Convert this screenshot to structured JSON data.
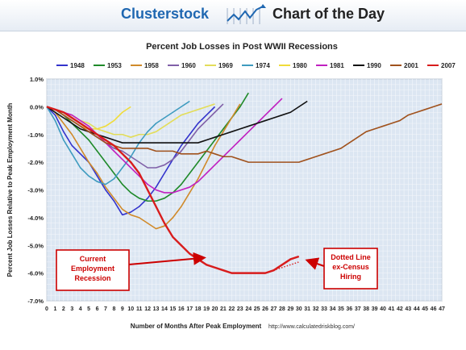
{
  "header": {
    "brand": "Clusterstock",
    "title": "Chart of the Day"
  },
  "colors": {
    "page_bg": "#ffffff",
    "plot_bg": "#dce6f2",
    "grid": "#f4f7fb",
    "annotation": "#cc0000"
  },
  "chart_data": {
    "type": "line",
    "title": "Percent Job Losses in Post WWII Recessions",
    "xlabel": "Number of Months After Peak Employment",
    "ylabel": "Percent Job Losses Relative to Peak Employment Month",
    "source": "http://www.calculatedriskblog.com/",
    "xlim": [
      0,
      47
    ],
    "ylim": [
      -7.0,
      1.0
    ],
    "yticks": [
      1.0,
      0.0,
      -1.0,
      -2.0,
      -3.0,
      -4.0,
      -5.0,
      -6.0,
      -7.0
    ],
    "ytick_labels": [
      "1.0%",
      "0.0%",
      "-1.0%",
      "-2.0%",
      "-3.0%",
      "-4.0%",
      "-5.0%",
      "-6.0%",
      "-7.0%"
    ],
    "xticks": [
      0,
      1,
      2,
      3,
      4,
      5,
      6,
      7,
      8,
      9,
      10,
      11,
      12,
      13,
      14,
      15,
      16,
      17,
      18,
      19,
      20,
      21,
      22,
      23,
      24,
      25,
      26,
      27,
      28,
      29,
      30,
      31,
      32,
      33,
      34,
      35,
      36,
      37,
      38,
      39,
      40,
      41,
      42,
      43,
      44,
      45,
      46,
      47
    ],
    "grid": true,
    "legend_position": "top",
    "series": [
      {
        "name": "1948",
        "color": "#3333cc",
        "values": [
          0,
          -0.3,
          -0.9,
          -1.4,
          -1.7,
          -2.0,
          -2.5,
          -3.0,
          -3.4,
          -3.9,
          -3.8,
          -3.6,
          -3.3,
          -2.9,
          -2.4,
          -1.9,
          -1.4,
          -1.0,
          -0.6,
          -0.3,
          0.0
        ]
      },
      {
        "name": "1953",
        "color": "#1f8a2a",
        "values": [
          0,
          -0.1,
          -0.3,
          -0.6,
          -0.9,
          -1.2,
          -1.6,
          -2.0,
          -2.4,
          -2.8,
          -3.1,
          -3.3,
          -3.4,
          -3.4,
          -3.3,
          -3.1,
          -2.8,
          -2.4,
          -2.0,
          -1.6,
          -1.2,
          -0.8,
          -0.4,
          0.0,
          0.5
        ]
      },
      {
        "name": "1958",
        "color": "#d08a2a",
        "values": [
          0,
          -0.2,
          -0.6,
          -1.0,
          -1.5,
          -2.0,
          -2.4,
          -2.9,
          -3.3,
          -3.7,
          -3.9,
          -4.0,
          -4.2,
          -4.4,
          -4.3,
          -4.0,
          -3.6,
          -3.1,
          -2.6,
          -2.0,
          -1.4,
          -0.9,
          -0.4,
          0.1
        ]
      },
      {
        "name": "1960",
        "color": "#8060a8",
        "values": [
          0,
          -0.1,
          -0.3,
          -0.5,
          -0.7,
          -0.9,
          -1.1,
          -1.3,
          -1.5,
          -1.6,
          -1.8,
          -2.0,
          -2.2,
          -2.2,
          -2.1,
          -1.9,
          -1.6,
          -1.2,
          -0.8,
          -0.5,
          -0.2,
          0.1
        ]
      },
      {
        "name": "1969",
        "color": "#e3dd5a",
        "values": [
          0,
          -0.1,
          -0.2,
          -0.3,
          -0.5,
          -0.6,
          -0.8,
          -0.9,
          -1.0,
          -1.0,
          -1.1,
          -1.0,
          -1.0,
          -0.9,
          -0.7,
          -0.5,
          -0.3,
          -0.2,
          -0.1,
          0.0,
          0.1
        ]
      },
      {
        "name": "1974",
        "color": "#3e9bbf",
        "values": [
          0,
          -0.5,
          -1.2,
          -1.7,
          -2.2,
          -2.5,
          -2.7,
          -2.8,
          -2.6,
          -2.2,
          -1.8,
          -1.3,
          -0.9,
          -0.6,
          -0.4,
          -0.2,
          0.0,
          0.2
        ]
      },
      {
        "name": "1980",
        "color": "#f0dc3a",
        "values": [
          0,
          -0.1,
          -0.3,
          -0.5,
          -0.7,
          -0.8,
          -0.8,
          -0.7,
          -0.5,
          -0.2,
          0.0
        ]
      },
      {
        "name": "1981",
        "color": "#c020c0",
        "values": [
          0,
          -0.1,
          -0.2,
          -0.3,
          -0.5,
          -0.7,
          -1.0,
          -1.3,
          -1.6,
          -1.9,
          -2.2,
          -2.5,
          -2.8,
          -3.0,
          -3.1,
          -3.1,
          -3.0,
          -2.9,
          -2.7,
          -2.4,
          -2.1,
          -1.8,
          -1.5,
          -1.2,
          -0.9,
          -0.6,
          -0.3,
          0.0,
          0.3
        ]
      },
      {
        "name": "1990",
        "color": "#111111",
        "values": [
          0,
          -0.2,
          -0.4,
          -0.6,
          -0.8,
          -0.9,
          -1.0,
          -1.1,
          -1.2,
          -1.3,
          -1.3,
          -1.3,
          -1.3,
          -1.3,
          -1.3,
          -1.3,
          -1.3,
          -1.3,
          -1.3,
          -1.2,
          -1.1,
          -1.0,
          -0.9,
          -0.8,
          -0.7,
          -0.6,
          -0.5,
          -0.4,
          -0.3,
          -0.2,
          0.0,
          0.2
        ]
      },
      {
        "name": "2001",
        "color": "#a0521d",
        "values": [
          0,
          -0.1,
          -0.3,
          -0.5,
          -0.7,
          -0.9,
          -1.1,
          -1.3,
          -1.4,
          -1.5,
          -1.5,
          -1.5,
          -1.5,
          -1.6,
          -1.6,
          -1.6,
          -1.7,
          -1.7,
          -1.7,
          -1.6,
          -1.7,
          -1.8,
          -1.8,
          -1.9,
          -2.0,
          -2.0,
          -2.0,
          -2.0,
          -2.0,
          -2.0,
          -2.0,
          -1.9,
          -1.8,
          -1.7,
          -1.6,
          -1.5,
          -1.3,
          -1.1,
          -0.9,
          -0.8,
          -0.7,
          -0.6,
          -0.5,
          -0.3,
          -0.2,
          -0.1,
          0.0,
          0.1
        ]
      },
      {
        "name": "2007",
        "color": "#d81c1c",
        "values": [
          0,
          -0.1,
          -0.2,
          -0.4,
          -0.6,
          -0.8,
          -1.0,
          -1.2,
          -1.4,
          -1.7,
          -2.0,
          -2.4,
          -3.0,
          -3.6,
          -4.2,
          -4.7,
          -5.0,
          -5.3,
          -5.5,
          -5.7,
          -5.8,
          -5.9,
          -6.0,
          -6.0,
          -6.0,
          -6.0,
          -6.0,
          -5.9,
          -5.7,
          -5.5,
          -5.4
        ],
        "dotted_values": [
          -6.0,
          -5.9,
          -5.8,
          -5.7,
          -5.6
        ]
      }
    ],
    "annotations": [
      {
        "label": "Current Employment Recession"
      },
      {
        "label": "Dotted Line ex-Census Hiring"
      }
    ]
  }
}
